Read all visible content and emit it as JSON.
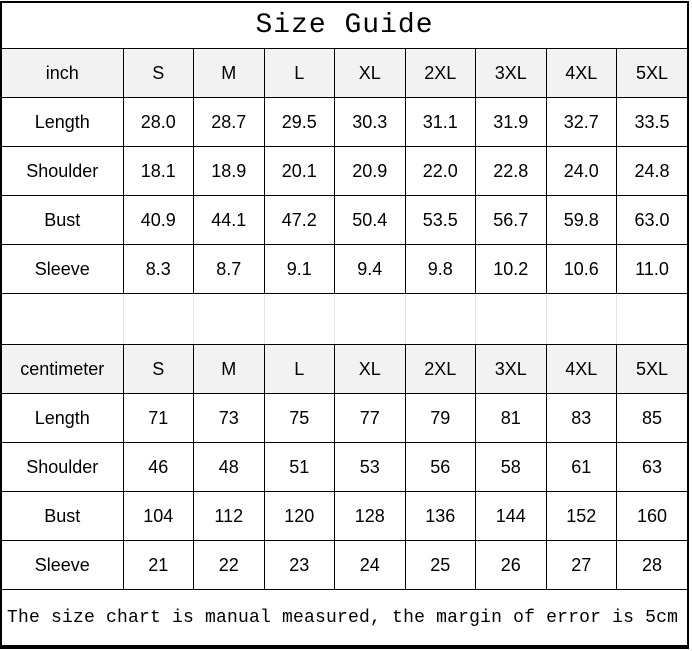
{
  "title": "Size Guide",
  "footer_note": "The size chart is manual measured, the margin of error is 5cm",
  "colors": {
    "border": "#000000",
    "header_bg": "#f2f2f2",
    "spacer_line": "#e3e3e3",
    "text": "#000000",
    "background": "#ffffff"
  },
  "tables": [
    {
      "unit_label": "inch",
      "sizes": [
        "S",
        "M",
        "L",
        "XL",
        "2XL",
        "3XL",
        "4XL",
        "5XL"
      ],
      "rows": [
        {
          "label": "Length",
          "values": [
            "28.0",
            "28.7",
            "29.5",
            "30.3",
            "31.1",
            "31.9",
            "32.7",
            "33.5"
          ]
        },
        {
          "label": "Shoulder",
          "values": [
            "18.1",
            "18.9",
            "20.1",
            "20.9",
            "22.0",
            "22.8",
            "24.0",
            "24.8"
          ]
        },
        {
          "label": "Bust",
          "values": [
            "40.9",
            "44.1",
            "47.2",
            "50.4",
            "53.5",
            "56.7",
            "59.8",
            "63.0"
          ]
        },
        {
          "label": "Sleeve",
          "values": [
            "8.3",
            "8.7",
            "9.1",
            "9.4",
            "9.8",
            "10.2",
            "10.6",
            "11.0"
          ]
        }
      ]
    },
    {
      "unit_label": "centimeter",
      "sizes": [
        "S",
        "M",
        "L",
        "XL",
        "2XL",
        "3XL",
        "4XL",
        "5XL"
      ],
      "rows": [
        {
          "label": "Length",
          "values": [
            "71",
            "73",
            "75",
            "77",
            "79",
            "81",
            "83",
            "85"
          ]
        },
        {
          "label": "Shoulder",
          "values": [
            "46",
            "48",
            "51",
            "53",
            "56",
            "58",
            "61",
            "63"
          ]
        },
        {
          "label": "Bust",
          "values": [
            "104",
            "112",
            "120",
            "128",
            "136",
            "144",
            "152",
            "160"
          ]
        },
        {
          "label": "Sleeve",
          "values": [
            "21",
            "22",
            "23",
            "24",
            "25",
            "26",
            "27",
            "28"
          ]
        }
      ]
    }
  ]
}
